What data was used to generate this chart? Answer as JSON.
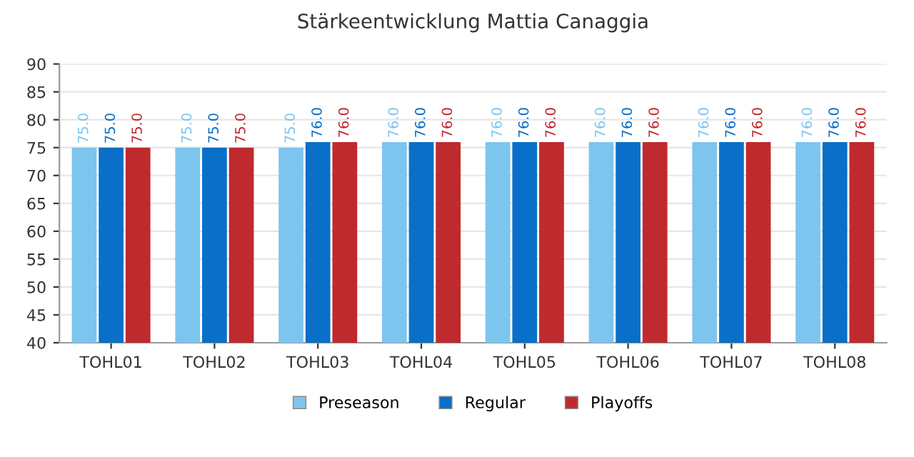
{
  "chart_data": {
    "type": "bar",
    "title": "Stärkeentwicklung Mattia Canaggia",
    "categories": [
      "TOHL01",
      "TOHL02",
      "TOHL03",
      "TOHL04",
      "TOHL05",
      "TOHL06",
      "TOHL07",
      "TOHL08"
    ],
    "series": [
      {
        "name": "Preseason",
        "color": "#7cc5ef",
        "values": [
          75,
          75,
          75,
          76,
          76,
          76,
          76,
          76
        ],
        "value_labels": [
          "75.0",
          "75.0",
          "75.0",
          "76.0",
          "76.0",
          "76.0",
          "76.0",
          "76.0"
        ]
      },
      {
        "name": "Regular",
        "color": "#0a6fc8",
        "values": [
          75,
          75,
          76,
          76,
          76,
          76,
          76,
          76
        ],
        "value_labels": [
          "75.0",
          "75.0",
          "76.0",
          "76.0",
          "76.0",
          "76.0",
          "76.0",
          "76.0"
        ]
      },
      {
        "name": "Playoffs",
        "color": "#bf2a2e",
        "values": [
          75,
          75,
          76,
          76,
          76,
          76,
          76,
          76
        ],
        "value_labels": [
          "75.0",
          "75.0",
          "76.0",
          "76.0",
          "76.0",
          "76.0",
          "76.0",
          "76.0"
        ]
      }
    ],
    "ylim": [
      40,
      90
    ],
    "yticks": [
      40,
      45,
      50,
      55,
      60,
      65,
      70,
      75,
      80,
      85,
      90
    ],
    "grid": "y",
    "legend": "bottom"
  }
}
